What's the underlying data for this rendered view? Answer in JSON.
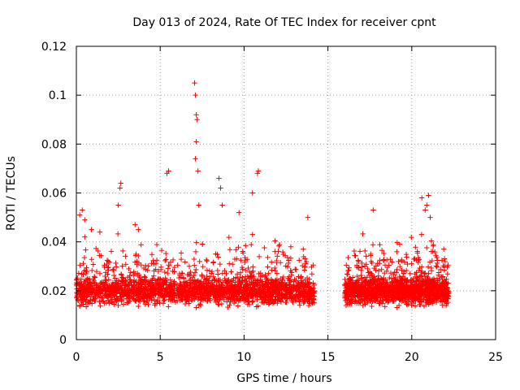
{
  "chart_data": {
    "type": "scatter",
    "title": "Day 013 of 2024, Rate Of TEC Index for receiver cpnt",
    "xlabel": "GPS time / hours",
    "ylabel": "ROTI / TECUs",
    "xlim": [
      0,
      25
    ],
    "ylim": [
      0,
      0.12
    ],
    "x_ticks": [
      "0",
      "5",
      "10",
      "15",
      "20",
      "25"
    ],
    "y_ticks": [
      "0",
      "0.02",
      "0.04",
      "0.06",
      "0.08",
      "0.1",
      "0.12"
    ],
    "grid": true,
    "marker": "+",
    "series": [
      {
        "name": "ROTI",
        "color": "#ff0000",
        "segments": [
          {
            "x_start": 0.0,
            "x_end": 14.2
          },
          {
            "x_start": 16.0,
            "x_end": 22.2
          }
        ],
        "typical_range": [
          0.005,
          0.035
        ],
        "x": [
          0.2,
          0.35,
          0.5,
          0.5,
          0.9,
          1.4,
          2.5,
          2.6,
          2.65,
          3.5,
          3.7,
          5.4,
          5.5,
          7.05,
          7.1,
          7.15,
          7.2,
          7.15,
          7.1,
          7.25,
          7.3,
          8.5,
          8.6,
          8.7,
          9.7,
          10.5,
          10.8,
          10.85,
          13.8,
          17.7,
          20.6,
          20.8,
          20.9,
          21.0,
          21.1
        ],
        "y": [
          0.051,
          0.053,
          0.049,
          0.042,
          0.045,
          0.044,
          0.055,
          0.062,
          0.064,
          0.047,
          0.045,
          0.068,
          0.069,
          0.105,
          0.1,
          0.092,
          0.09,
          0.081,
          0.074,
          0.069,
          0.055,
          0.066,
          0.062,
          0.055,
          0.052,
          0.06,
          0.068,
          0.069,
          0.05,
          0.053,
          0.058,
          0.053,
          0.055,
          0.059,
          0.05
        ]
      }
    ]
  }
}
